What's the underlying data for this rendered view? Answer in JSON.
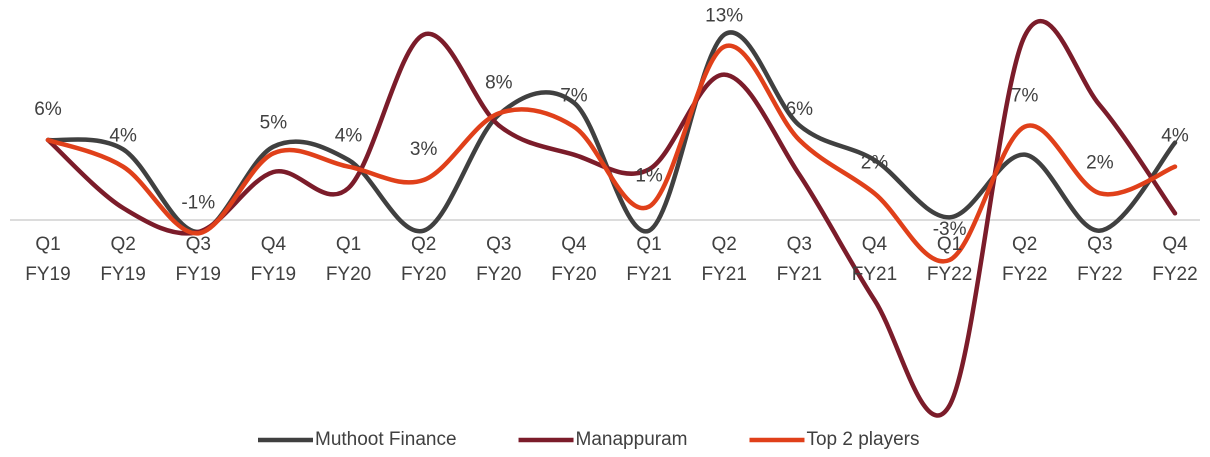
{
  "chart_data": {
    "type": "line",
    "categories": [
      "Q1 FY19",
      "Q2 FY19",
      "Q3 FY19",
      "Q4 FY19",
      "Q1 FY20",
      "Q2 FY20",
      "Q3 FY20",
      "Q4 FY20",
      "Q1 FY21",
      "Q2 FY21",
      "Q3 FY21",
      "Q4 FY21",
      "Q1 FY22",
      "Q2 FY22",
      "Q3 FY22",
      "Q4 FY22"
    ],
    "series": [
      {
        "name": "Muthoot Finance",
        "color": "#404040",
        "values": [
          6,
          5.3,
          -0.9,
          5.5,
          4.5,
          -0.8,
          7.9,
          8.8,
          -0.8,
          13.9,
          7.1,
          4.5,
          0.2,
          4.9,
          -0.8,
          5.8
        ]
      },
      {
        "name": "Manappuram",
        "color": "#7b1c2a",
        "values": [
          6,
          0.9,
          -0.9,
          3.6,
          2.4,
          13.9,
          7.1,
          4.9,
          3.8,
          10.9,
          3.4,
          -6,
          -13.9,
          13.8,
          8.6,
          0.5
        ]
      },
      {
        "name": "Top 2 players",
        "color": "#e0401a",
        "values": [
          6,
          4,
          -1,
          5,
          4,
          3,
          8,
          7,
          1,
          13,
          6,
          2,
          -3,
          7,
          2,
          4
        ],
        "value_labels": [
          "6%",
          "4%",
          "-1%",
          "5%",
          "4%",
          "3%",
          "8%",
          "7%",
          "1%",
          "13%",
          "6%",
          "2%",
          "-3%",
          "7%",
          "2%",
          "4%"
        ]
      }
    ],
    "ylim": [
      -15,
      15
    ],
    "legend": "bottom"
  }
}
